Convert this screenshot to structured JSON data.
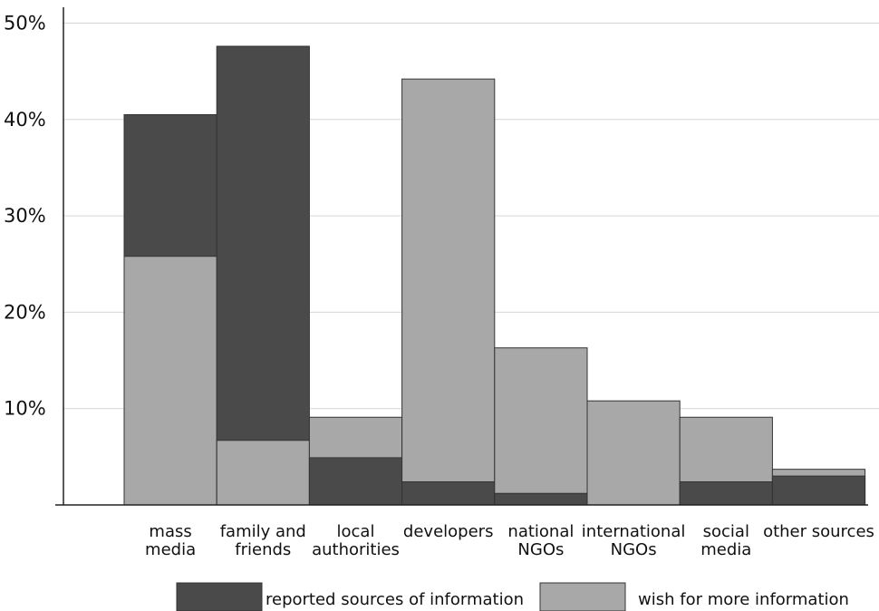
{
  "chart_data": {
    "type": "bar",
    "title": "",
    "xlabel": "",
    "ylabel": "",
    "ylim": [
      0,
      50
    ],
    "y_ticks": [
      {
        "value": 10,
        "label": "10%"
      },
      {
        "value": 20,
        "label": "20%"
      },
      {
        "value": 30,
        "label": "30%"
      },
      {
        "value": 40,
        "label": "40%"
      },
      {
        "value": 50,
        "label": "50%"
      }
    ],
    "grid": true,
    "categories": [
      [
        "mass",
        "media"
      ],
      [
        "family and",
        "friends"
      ],
      [
        "local",
        "authorities"
      ],
      [
        "developers"
      ],
      [
        "national",
        "NGOs"
      ],
      [
        "international",
        "NGOs"
      ],
      [
        "social",
        "media"
      ],
      [
        "other sources"
      ]
    ],
    "series": [
      {
        "name": "reported sources of information",
        "color": "#4a4a4a",
        "values": [
          40.5,
          47.6,
          4.9,
          2.4,
          1.2,
          0.0,
          2.4,
          3.0
        ]
      },
      {
        "name": "wish for more information",
        "color": "#a8a8a8",
        "values": [
          25.8,
          6.7,
          9.1,
          44.2,
          16.3,
          10.8,
          9.1,
          3.7
        ]
      }
    ],
    "legend_position": "bottom"
  }
}
